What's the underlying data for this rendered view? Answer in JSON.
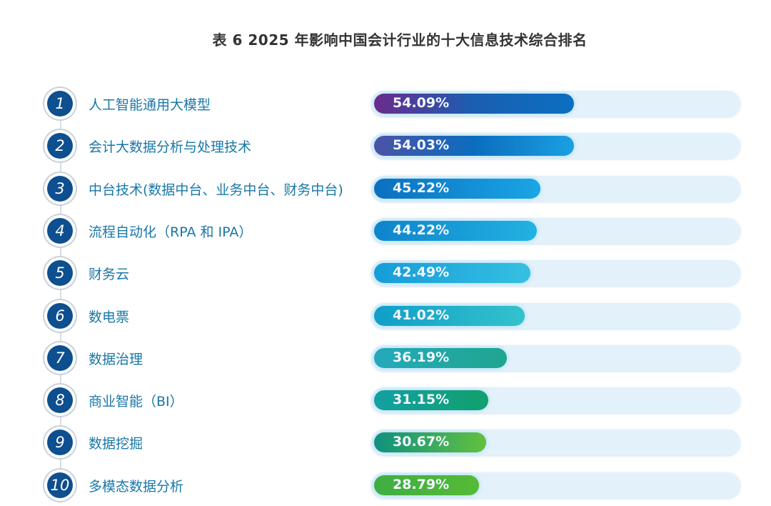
{
  "chart_data": {
    "type": "bar",
    "orientation": "horizontal",
    "title": "表 6  2025 年影响中国会计行业的十大信息技术综合排名",
    "categories": [
      "人工智能通用大模型",
      "会计大数据分析与处理技术",
      "中台技术(数据中台、业务中台、财务中台)",
      "流程自动化（RPA 和 IPA）",
      "财务云",
      "数电票",
      "数据治理",
      "商业智能（BI）",
      "数据挖掘",
      "多模态数据分析"
    ],
    "ranks": [
      "1",
      "2",
      "3",
      "4",
      "5",
      "6",
      "7",
      "8",
      "9",
      "10"
    ],
    "values": [
      54.09,
      54.03,
      45.22,
      44.22,
      42.49,
      41.02,
      36.19,
      31.15,
      30.67,
      28.79
    ],
    "value_labels": [
      "54.09%",
      "54.03%",
      "45.22%",
      "44.22%",
      "42.49%",
      "41.02%",
      "36.19%",
      "31.15%",
      "30.67%",
      "28.79%"
    ],
    "unit": "%",
    "grid": false,
    "colors": [
      [
        "#6b2a8e",
        "#1a5fb0",
        "#0b6fc2"
      ],
      [
        "#4c52a6",
        "#0b6dbf",
        "#1ba0e2"
      ],
      [
        "#0b6fbf",
        "#1aa6e6"
      ],
      [
        "#0e84cb",
        "#22b2e2"
      ],
      [
        "#169cd8",
        "#35c0e2"
      ],
      [
        "#0f9fc8",
        "#34c2cc"
      ],
      [
        "#25a9bb",
        "#1fa68e"
      ],
      [
        "#13a0a2",
        "#11a06c"
      ],
      [
        "#10907f",
        "#62c03e"
      ],
      [
        "#3fae42",
        "#55ba36"
      ]
    ]
  }
}
